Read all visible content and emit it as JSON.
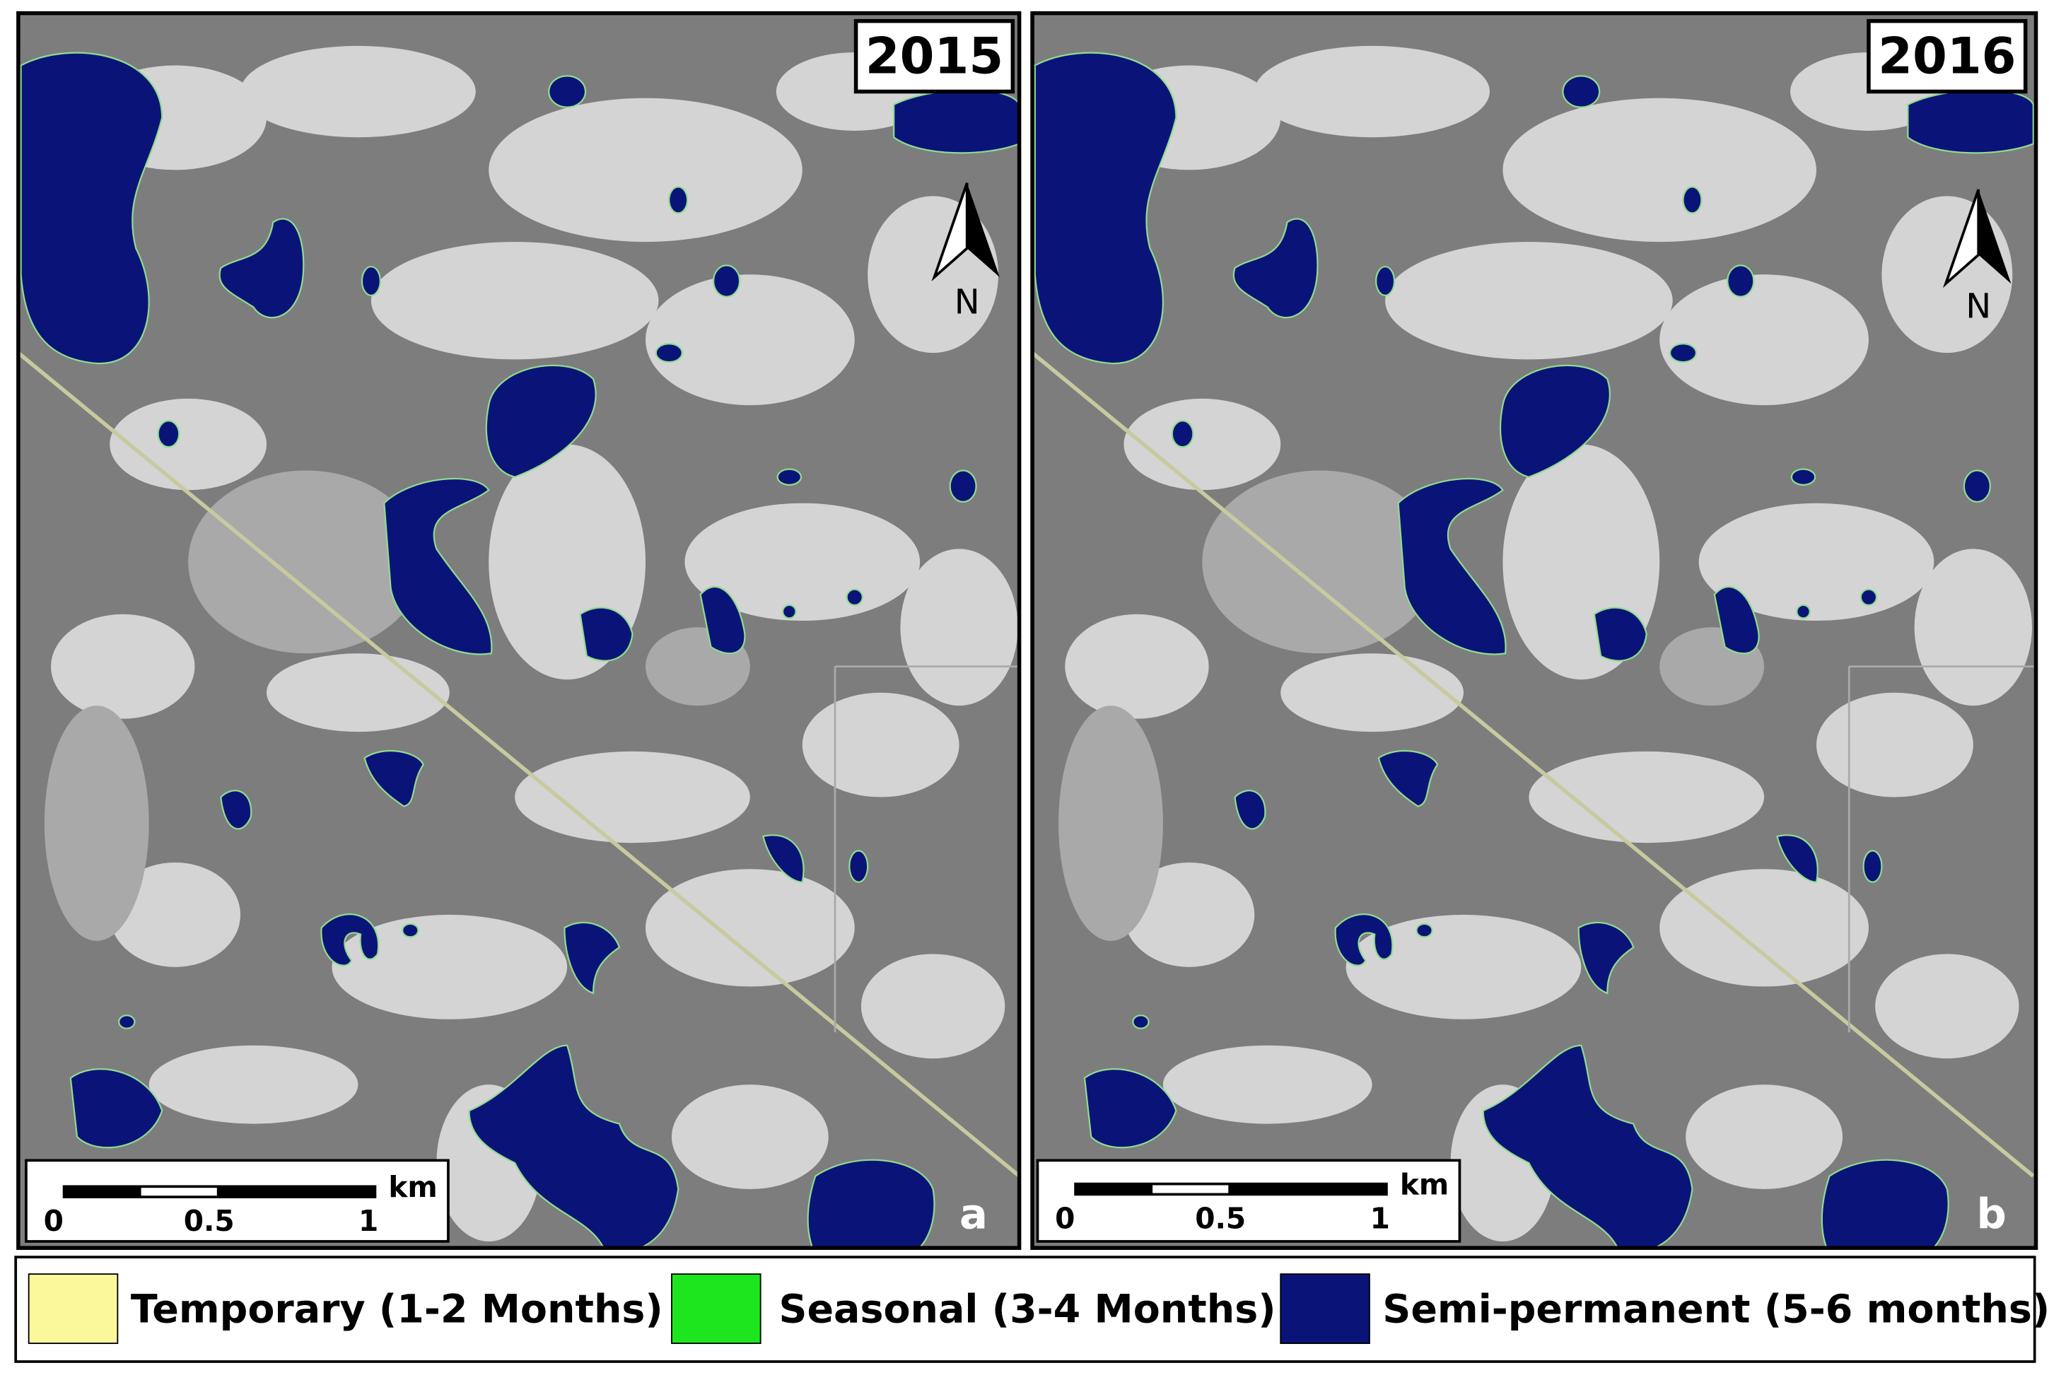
{
  "panels": [
    {
      "year": "2015",
      "north": "N",
      "scale": {
        "unit": "km",
        "labels": [
          "0",
          "0.5",
          "1"
        ]
      },
      "letter": "a"
    },
    {
      "year": "2016",
      "north": "N",
      "scale": {
        "unit": "km",
        "labels": [
          "0",
          "0.5",
          "1"
        ]
      },
      "letter": "b"
    }
  ],
  "legend": [
    {
      "label": "Temporary (1-2 Months)",
      "color": "#fbf89c"
    },
    {
      "label": "Seasonal (3-4 Months)",
      "color": "#1ee61e"
    },
    {
      "label": "Semi-permanent (5-6 months)",
      "color": "#0a1478"
    }
  ]
}
